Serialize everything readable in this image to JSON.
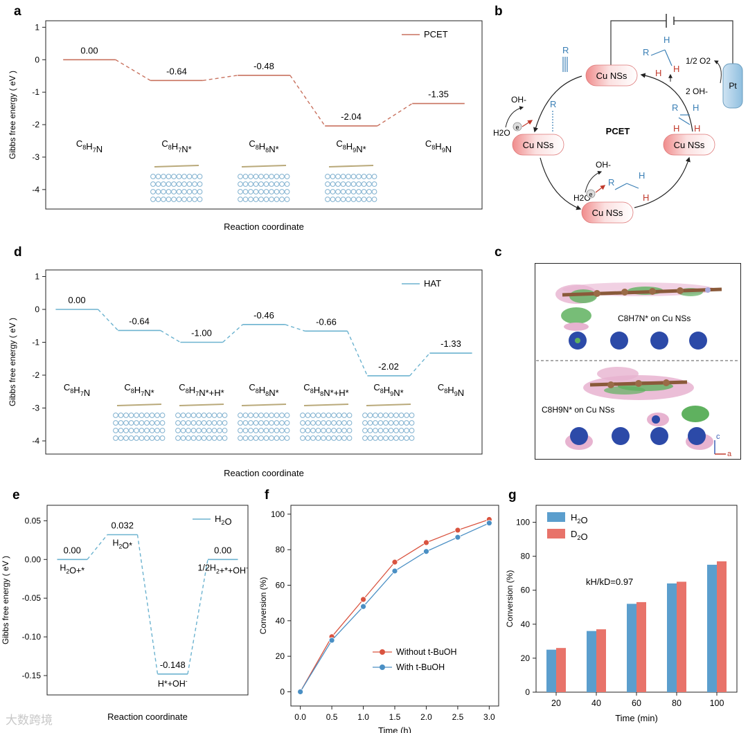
{
  "panel_labels": {
    "a": "a",
    "b": "b",
    "c": "c",
    "d": "d",
    "e": "e",
    "f": "f",
    "g": "g"
  },
  "watermark": "大数跨境",
  "chart_data": [
    {
      "id": "a",
      "type": "line",
      "title": "",
      "xlabel": "Reaction coordinate",
      "ylabel": "Gibbs free energy ( eV )",
      "ylim": [
        -4.6,
        1.2
      ],
      "yticks": [
        "1",
        "0",
        "-1",
        "-2",
        "-3",
        "-4"
      ],
      "ytick_values": [
        1,
        0,
        -1,
        -2,
        -3,
        -4
      ],
      "legend": "PCET",
      "legend_position": "top-right",
      "color": "#c8715e",
      "steps": [
        {
          "label": "C8H7N",
          "value": 0.0,
          "value_label": "0.00"
        },
        {
          "label": "C8H7N*",
          "value": -0.64,
          "value_label": "-0.64"
        },
        {
          "label": "C8H8N*",
          "value": -0.48,
          "value_label": "-0.48"
        },
        {
          "label": "C8H9N*",
          "value": -2.04,
          "value_label": "-2.04"
        },
        {
          "label": "C8H9N",
          "value": -1.35,
          "value_label": "-1.35"
        }
      ]
    },
    {
      "id": "d",
      "type": "line",
      "title": "",
      "xlabel": "Reaction coordinate",
      "ylabel": "Gibbs free energy ( eV )",
      "ylim": [
        -4.4,
        1.2
      ],
      "yticks": [
        "1",
        "0",
        "-1",
        "-2",
        "-3",
        "-4"
      ],
      "ytick_values": [
        1,
        0,
        -1,
        -2,
        -3,
        -4
      ],
      "legend": "HAT",
      "legend_position": "top-right",
      "color": "#6bb2cf",
      "steps": [
        {
          "label": "C8H7N",
          "value": 0.0,
          "value_label": "0.00"
        },
        {
          "label": "C8H7N*",
          "value": -0.64,
          "value_label": "-0.64"
        },
        {
          "label": "C8H7N*+H*",
          "value": -1.0,
          "value_label": "-1.00"
        },
        {
          "label": "C8H8N*",
          "value": -0.46,
          "value_label": "-0.46"
        },
        {
          "label": "C8H8N*+H*",
          "value": -0.66,
          "value_label": "-0.66"
        },
        {
          "label": "C8H9N*",
          "value": -2.02,
          "value_label": "-2.02"
        },
        {
          "label": "C8H9N",
          "value": -1.33,
          "value_label": "-1.33"
        }
      ]
    },
    {
      "id": "e",
      "type": "line",
      "title": "",
      "xlabel": "Reaction coordinate",
      "ylabel": "Gibbs free energy ( eV )",
      "ylim": [
        -0.175,
        0.07
      ],
      "yticks": [
        "0.05",
        "0.00",
        "-0.05",
        "-0.10",
        "-0.15"
      ],
      "ytick_values": [
        0.05,
        0,
        -0.05,
        -0.1,
        -0.15
      ],
      "legend": "H2O",
      "legend_position": "top-right",
      "color": "#6bb2cf",
      "steps": [
        {
          "label": "H2O+*",
          "value": 0.0,
          "value_label": "0.00"
        },
        {
          "label": "H2O*",
          "value": 0.032,
          "value_label": "0.032"
        },
        {
          "label": "H*+OH-",
          "value": -0.148,
          "value_label": "-0.148"
        },
        {
          "label": "1/2H2+*+OH-",
          "value": 0.0,
          "value_label": "0.00"
        }
      ]
    },
    {
      "id": "f",
      "type": "line",
      "title": "",
      "xlabel": "Time (h)",
      "ylabel": "Conversion (%)",
      "ylim": [
        -8,
        105
      ],
      "xlim": [
        -0.15,
        3.15
      ],
      "x": [
        0,
        0.5,
        1.0,
        1.5,
        2.0,
        2.5,
        3.0
      ],
      "xticks": [
        "0.0",
        "0.5",
        "1.0",
        "1.5",
        "2.0",
        "2.5",
        "3.0"
      ],
      "yticks": [
        "0",
        "20",
        "40",
        "60",
        "80",
        "100"
      ],
      "ytick_values": [
        0,
        20,
        40,
        60,
        80,
        100
      ],
      "legend_position": "bottom-right",
      "series": [
        {
          "name": "Without t-BuOH",
          "values": [
            0,
            31,
            52,
            73,
            84,
            91,
            97
          ],
          "color": "#d9533f"
        },
        {
          "name": "With t-BuOH",
          "values": [
            0,
            29,
            48,
            68,
            79,
            87,
            95
          ],
          "color": "#4a8fc4"
        }
      ]
    },
    {
      "id": "g",
      "type": "bar",
      "title": "",
      "xlabel": "Time (min)",
      "ylabel": "Conversion (%)",
      "ylim": [
        0,
        110
      ],
      "categories": [
        "20",
        "40",
        "60",
        "80",
        "100"
      ],
      "yticks": [
        "0",
        "20",
        "40",
        "60",
        "80",
        "100"
      ],
      "ytick_values": [
        0,
        20,
        40,
        60,
        80,
        100
      ],
      "legend_position": "top-left",
      "annotation": "kH/kD=0.97",
      "series": [
        {
          "name": "H2O",
          "values": [
            25,
            36,
            52,
            64,
            75
          ],
          "color": "#5b9ecd"
        },
        {
          "name": "D2O",
          "values": [
            26,
            37,
            53,
            65,
            77
          ],
          "color": "#e8736a"
        }
      ]
    }
  ],
  "scheme_b": {
    "cu_label": "Cu NSs",
    "center_label": "PCET",
    "pt_label": "Pt",
    "o2_label": "1/2 O2",
    "oh2_label": "2 OH-",
    "oh_label": "OH-",
    "h2o_label": "H2O",
    "r_label": "R",
    "h_label": "H",
    "e_label": "e"
  },
  "panel_c": {
    "top_label": "C8H7N* on Cu NSs",
    "bottom_label": "C8H9N* on Cu NSs",
    "axis_c": "c",
    "axis_a": "a"
  }
}
